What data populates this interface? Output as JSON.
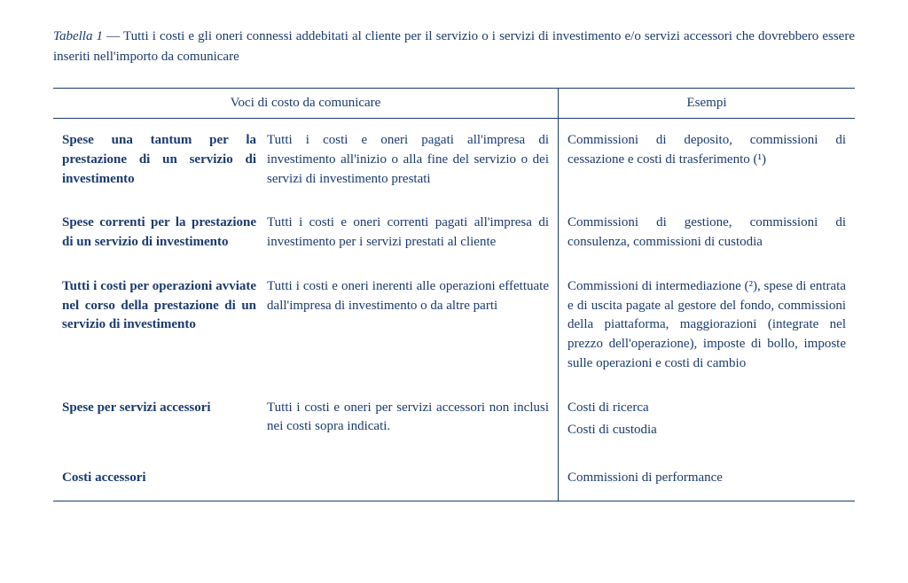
{
  "caption": {
    "label": "Tabella 1",
    "sep": " — ",
    "text": "Tutti i costi e gli oneri connessi addebitati al cliente per il servizio o i servizi di investimento e/o servizi accessori che dovrebbero essere inseriti nell'importo da comunicare"
  },
  "headers": {
    "voci": "Voci di costo da comunicare",
    "esempi": "Esempi"
  },
  "rows": [
    {
      "label": "Spese una tantum per la prestazione di un servizio di investimento",
      "desc": "Tutti i costi e oneri pagati all'impresa di investimento all'inizio o alla fine del servizio o dei servizi di investimento prestati",
      "example": "Commissioni di deposito, commissioni di cessazione e costi di trasferimento (¹)"
    },
    {
      "label": "Spese correnti per la prestazione di un servizio di investimento",
      "desc": "Tutti i costi e oneri correnti pagati all'impresa di investimento per i servizi prestati al cliente",
      "example": "Commissioni di gestione, commissioni di consulenza, commissioni di custodia"
    },
    {
      "label": "Tutti i costi per operazioni avviate nel corso della prestazione di un servizio di investimento",
      "desc": "Tutti i costi e oneri inerenti alle operazioni effettuate dall'impresa di investimento o da altre parti",
      "example": "Commissioni di intermediazione (²), spese di entrata e di uscita pagate al gestore del fondo, commissioni della piattaforma, maggiorazioni (integrate nel prezzo dell'operazione), imposte di bollo, imposte sulle operazioni e costi di cambio"
    },
    {
      "label": "Spese per servizi accessori",
      "desc": "Tutti i costi e oneri per servizi accessori non inclusi nei costi sopra indicati.",
      "example_lines": [
        "Costi di ricerca",
        "Costi di custodia"
      ]
    },
    {
      "label": "Costi accessori",
      "desc": "",
      "example": "Commissioni di performance"
    }
  ]
}
